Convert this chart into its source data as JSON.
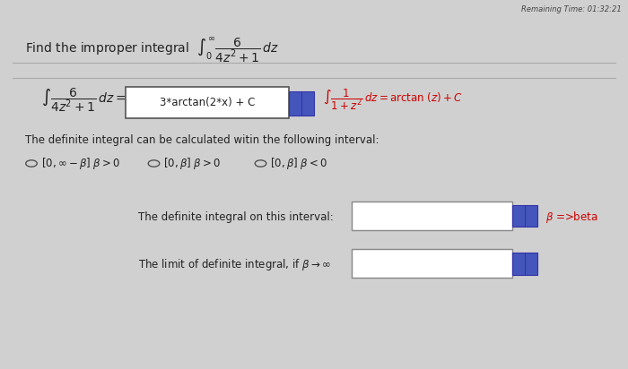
{
  "bg_color": "#d0d0d0",
  "line1_box": "3*arctan(2*x) + C",
  "radio_text": "The definite integral can be calculated witin the following interval:",
  "radio_options": [
    "$[0,\\infty-\\beta]\\; \\beta>0$",
    "$[0,\\beta]\\; \\beta>0$",
    "$[0,\\beta]\\; \\beta<0$"
  ],
  "row1_label": "The definite integral on this interval:",
  "row1_hint": "$\\beta$ =>beta",
  "row2_label": "The limit of definite integral, if $\\beta \\to \\infty$",
  "text_color_dark": "#222222",
  "text_color_red": "#cc0000",
  "box_fill": "#ffffff",
  "timer_text": "Remaining Time: 01:32:21"
}
